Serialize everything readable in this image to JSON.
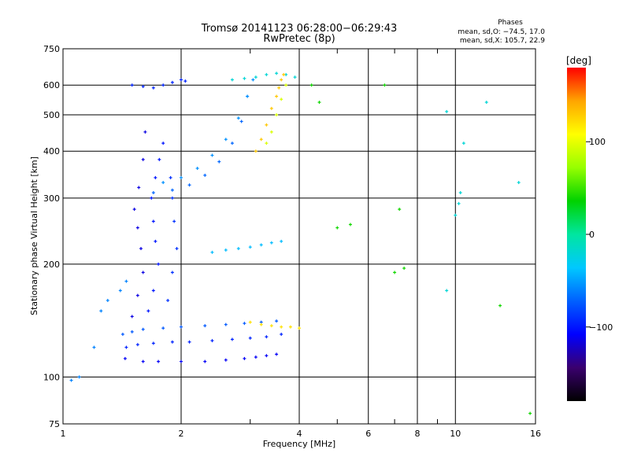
{
  "chart_data": {
    "type": "scatter",
    "title": "Tromsø 20141123 06:28:00−06:29:43",
    "subtitle": "RwPretec (8p)",
    "xlabel": "Frequency [MHz]",
    "ylabel": "Stationary phase Virtual Height [km]",
    "x_scale": "log",
    "y_scale": "log",
    "xlim": [
      1,
      16
    ],
    "ylim": [
      75,
      750
    ],
    "x_ticks": [
      1,
      2,
      4,
      6,
      8,
      10,
      16
    ],
    "x_tick_labels": [
      "1",
      "2",
      "4",
      "6",
      "8",
      "10",
      "16"
    ],
    "x_minor_ticks": [
      3,
      5,
      7,
      9
    ],
    "y_ticks": [
      75,
      100,
      200,
      300,
      400,
      500,
      600,
      750
    ],
    "y_tick_labels": [
      "75",
      "100",
      "200",
      "300",
      "400",
      "500",
      "600",
      "750"
    ],
    "grid": true,
    "info_title": "Phases",
    "info_lines": [
      "mean, sd,O: −74.5, 17.0",
      "mean, sd,X: 105.7, 22.9"
    ],
    "colorbar": {
      "label": "[deg]",
      "range": [
        -180,
        180
      ],
      "ticks": [
        100,
        0,
        -100
      ],
      "tick_labels": [
        "100",
        "0",
        "−100"
      ],
      "colors": [
        "#000000",
        "#3a006e",
        "#0000ff",
        "#0060ff",
        "#00c8ff",
        "#00e6a0",
        "#00d200",
        "#96ff00",
        "#ffff00",
        "#ffa500",
        "#ff0000"
      ]
    },
    "series": [
      {
        "freq": [
          1.44,
          1.6,
          1.75,
          2.0,
          2.3,
          2.6,
          2.9,
          3.1,
          3.3,
          3.5
        ],
        "height": [
          112,
          110,
          110,
          110,
          110,
          111,
          112,
          113,
          114,
          115
        ],
        "phase": -110
      },
      {
        "freq": [
          1.45,
          1.55,
          1.7,
          1.9,
          2.1,
          2.4,
          2.7,
          3.0,
          3.3,
          3.6
        ],
        "height": [
          120,
          122,
          123,
          124,
          124,
          125,
          126,
          127,
          128,
          130
        ],
        "phase": -95
      },
      {
        "freq": [
          1.42,
          1.5,
          1.6,
          1.8,
          2.0,
          2.3,
          2.6,
          2.9,
          3.2,
          3.5
        ],
        "height": [
          130,
          132,
          134,
          135,
          136,
          137,
          138,
          139,
          140,
          141
        ],
        "phase": -75
      },
      {
        "freq": [
          1.5,
          1.55,
          1.6,
          1.58,
          1.55,
          1.52,
          1.56,
          1.6,
          1.62
        ],
        "height": [
          145,
          165,
          190,
          220,
          250,
          280,
          320,
          380,
          450
        ],
        "phase": -115
      },
      {
        "freq": [
          1.65,
          1.7,
          1.75,
          1.72,
          1.7,
          1.68,
          1.72,
          1.76,
          1.8
        ],
        "height": [
          150,
          170,
          200,
          230,
          260,
          300,
          340,
          380,
          420
        ],
        "phase": -100
      },
      {
        "freq": [
          1.85,
          1.9,
          1.95,
          1.92,
          1.9,
          1.88
        ],
        "height": [
          160,
          190,
          220,
          260,
          300,
          340
        ],
        "phase": -90
      },
      {
        "freq": [
          1.7,
          1.9,
          2.1,
          2.3,
          2.5,
          2.7,
          2.85,
          2.95
        ],
        "height": [
          310,
          315,
          325,
          345,
          375,
          420,
          480,
          560
        ],
        "phase": -70
      },
      {
        "freq": [
          1.8,
          2.0,
          2.2,
          2.4,
          2.6,
          2.8,
          2.95,
          3.05
        ],
        "height": [
          330,
          340,
          360,
          390,
          430,
          490,
          560,
          620
        ],
        "phase": -55
      },
      {
        "freq": [
          1.5,
          1.6,
          1.7,
          1.8,
          1.9,
          2.0,
          2.05
        ],
        "height": [
          600,
          595,
          590,
          600,
          610,
          620,
          615
        ],
        "phase": -95
      },
      {
        "freq": [
          2.7,
          2.9,
          3.1,
          3.3,
          3.5,
          3.7,
          3.9
        ],
        "height": [
          620,
          625,
          630,
          640,
          645,
          640,
          630
        ],
        "phase": -20
      },
      {
        "freq": [
          3.1,
          3.2,
          3.3,
          3.4,
          3.5,
          3.55,
          3.6,
          3.65
        ],
        "height": [
          400,
          430,
          470,
          520,
          560,
          590,
          620,
          640
        ],
        "phase": 130
      },
      {
        "freq": [
          3.3,
          3.4,
          3.5,
          3.6,
          3.7
        ],
        "height": [
          420,
          450,
          500,
          550,
          600
        ],
        "phase": 95
      },
      {
        "freq": [
          3.0,
          3.2,
          3.4,
          3.6,
          3.8,
          4.0
        ],
        "height": [
          140,
          138,
          137,
          136,
          136,
          135
        ],
        "phase": 120
      },
      {
        "freq": [
          2.4,
          2.6,
          2.8,
          3.0,
          3.2,
          3.4,
          3.6
        ],
        "height": [
          215,
          218,
          220,
          222,
          225,
          228,
          230
        ],
        "phase": -40
      },
      {
        "freq": [
          1.05,
          1.1,
          1.2,
          1.25,
          1.3,
          1.4,
          1.45
        ],
        "height": [
          98,
          100,
          120,
          150,
          160,
          170,
          180
        ],
        "phase": -60
      },
      {
        "freq": [
          9.5,
          9.5,
          10.3,
          10.2,
          10.0,
          10.5,
          12.0,
          14.5
        ],
        "height": [
          510,
          170,
          310,
          290,
          270,
          420,
          540,
          330
        ],
        "phase": -20
      },
      {
        "freq": [
          4.3,
          4.5,
          5.0,
          5.4,
          6.6,
          7.0,
          7.2,
          7.4,
          13.0,
          15.5
        ],
        "height": [
          600,
          540,
          250,
          255,
          600,
          190,
          280,
          195,
          155,
          80
        ],
        "phase": 40
      }
    ]
  }
}
